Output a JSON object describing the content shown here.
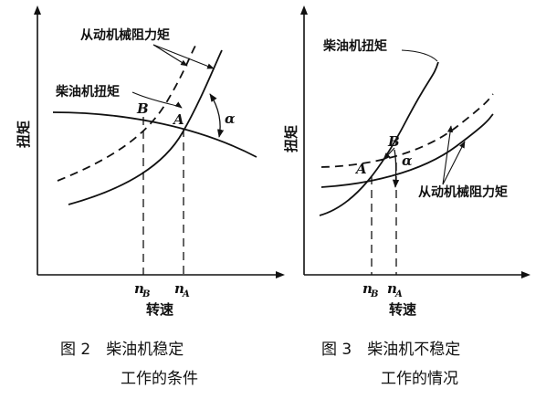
{
  "figure2": {
    "x_axis_label": "转速",
    "y_axis_label": "扭矩",
    "curve_label_resistance": "从动机械阻力矩",
    "curve_label_diesel": "柴油机扭矩",
    "point_a": "A",
    "point_b": "B",
    "angle_label": "α",
    "tick_nb": "n",
    "tick_nb_sub": "B",
    "tick_na": "n",
    "tick_na_sub": "A",
    "caption_line1": "图 2　柴油机稳定",
    "caption_line2": "工作的条件"
  },
  "figure3": {
    "x_axis_label": "转速",
    "y_axis_label": "扭矩",
    "curve_label_diesel": "柴油机扭矩",
    "curve_label_resistance": "从动机械阻力矩",
    "point_a": "A",
    "point_b": "B",
    "angle_label": "α",
    "tick_nb": "n",
    "tick_nb_sub": "B",
    "tick_na": "n",
    "tick_na_sub": "A",
    "caption_line1": "图 3　柴油机不稳定",
    "caption_line2": "工作的情况"
  }
}
